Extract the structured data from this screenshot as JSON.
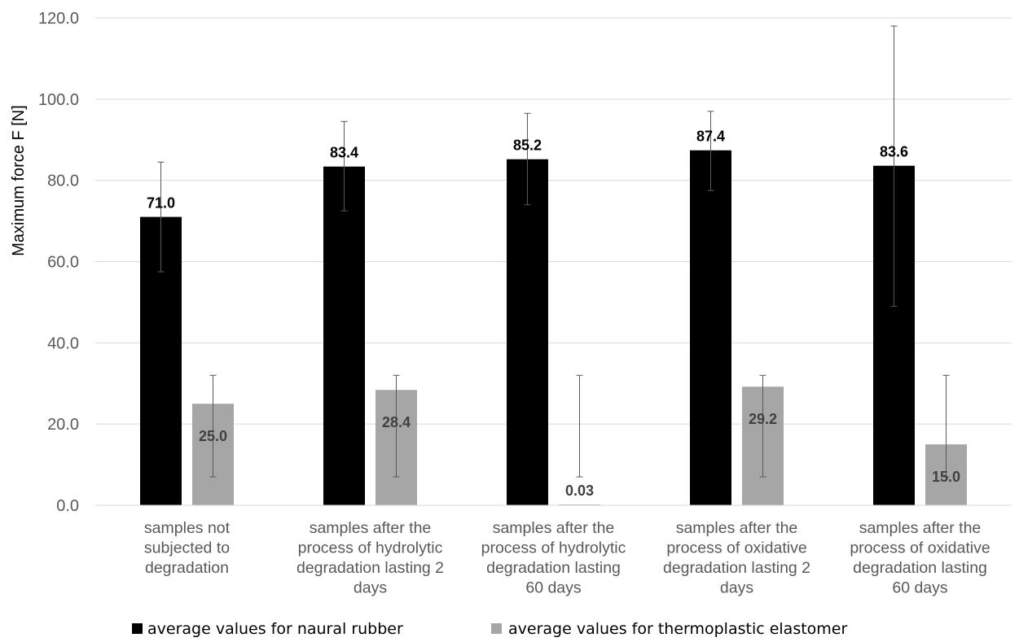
{
  "chart_data": {
    "type": "bar",
    "ylabel": "Maximum force F [N]",
    "ylim": [
      0,
      120
    ],
    "yticks": [
      0,
      20,
      40,
      60,
      80,
      100,
      120
    ],
    "ytick_labels": [
      "0.0",
      "20.0",
      "40.0",
      "60.0",
      "80.0",
      "100.0",
      "120.0"
    ],
    "grid": "horizontal",
    "legend_position": "bottom",
    "categories": [
      [
        "samples not",
        "subjected to",
        "degradation"
      ],
      [
        "samples after the",
        "process of hydrolytic",
        "degradation lasting 2",
        "days"
      ],
      [
        "samples after the",
        "process of hydrolytic",
        "degradation lasting",
        "60 days"
      ],
      [
        "samples after the",
        "process of oxidative",
        "degradation lasting 2",
        "days"
      ],
      [
        "samples after the",
        "process of oxidative",
        "degradation lasting",
        "60 days"
      ]
    ],
    "series": [
      {
        "name": "average values for naural rubber",
        "color": "#000000",
        "values": [
          71.0,
          83.4,
          85.2,
          87.4,
          83.6
        ],
        "labels": [
          "71.0",
          "83.4",
          "85.2",
          "87.4",
          "83.6"
        ],
        "error_low": [
          57.5,
          72.5,
          74.0,
          77.5,
          49.0
        ],
        "error_high": [
          84.5,
          94.5,
          96.5,
          97.0,
          118.0
        ]
      },
      {
        "name": "average values for thermoplastic elastomer",
        "color": "#a6a6a6",
        "values": [
          25.0,
          28.4,
          0.03,
          29.2,
          15.0
        ],
        "labels": [
          "25.0",
          "28.4",
          "0.03",
          "29.2",
          "15.0"
        ],
        "error_low": [
          7.0,
          7.0,
          7.0,
          7.0,
          7.0
        ],
        "error_high": [
          32.0,
          32.0,
          32.0,
          32.0,
          32.0
        ]
      }
    ]
  }
}
